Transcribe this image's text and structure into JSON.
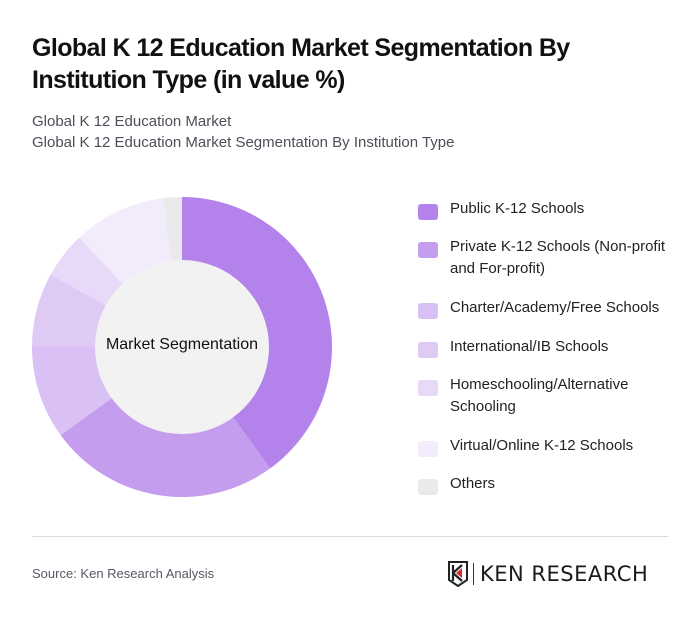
{
  "header": {
    "title": "Global K 12 Education Market Segmentation By Institution Type (in value %)",
    "subtitle_1": "Global K 12 Education Market",
    "subtitle_2": "Global K 12 Education Market Segmentation By Institution Type"
  },
  "chart": {
    "center_label": "Market Segmentation"
  },
  "legend": {
    "items": [
      {
        "label": "Public K-12 Schools",
        "color": "#B482EB"
      },
      {
        "label": "Private K-12 Schools (Non-profit and For-profit)",
        "color": "#C59DEE"
      },
      {
        "label": "Charter/Academy/Free Schools",
        "color": "#D9C1F5"
      },
      {
        "label": "International/IB Schools",
        "color": "#DFCAF6"
      },
      {
        "label": "Homeschooling/Alternative Schooling",
        "color": "#E8D9F8"
      },
      {
        "label": "Virtual/Online K-12 Schools",
        "color": "#F2EBFC"
      },
      {
        "label": "Others",
        "color": "#EAEAEA"
      }
    ]
  },
  "footer": {
    "source": "Source: Ken Research Analysis",
    "logo_text": "KEN RESEARCH"
  },
  "chart_data": {
    "type": "pie",
    "subtype": "donut",
    "title": "Global K 12 Education Market Segmentation By Institution Type (in value %)",
    "center_label": "Market Segmentation",
    "categories": [
      "Public K-12 Schools",
      "Private K-12 Schools (Non-profit and For-profit)",
      "Charter/Academy/Free Schools",
      "International/IB Schools",
      "Homeschooling/Alternative Schooling",
      "Virtual/Online K-12 Schools",
      "Others"
    ],
    "values": [
      40,
      25,
      10,
      8,
      5,
      10,
      2
    ],
    "colors": [
      "#B482EB",
      "#C59DEE",
      "#D9C1F5",
      "#DFCAF6",
      "#E8D9F8",
      "#F2EBFC",
      "#EAEAEA"
    ],
    "legend_position": "right",
    "start_angle": "12 o'clock, clockwise"
  }
}
